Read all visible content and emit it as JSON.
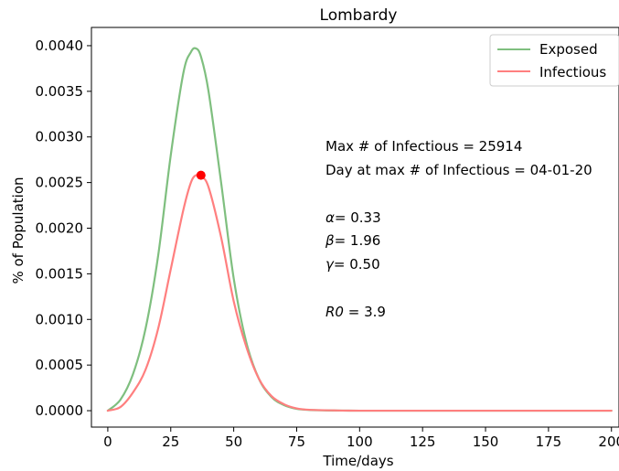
{
  "chart_data": {
    "type": "line",
    "title": "Lombardy",
    "xlabel": "Time/days",
    "ylabel": "% of Population",
    "xlim": [
      -6.5,
      203
    ],
    "ylim": [
      -0.00018,
      0.0042
    ],
    "xticks": [
      0,
      25,
      50,
      75,
      100,
      125,
      150,
      175,
      200
    ],
    "xtick_labels": [
      "0",
      "25",
      "50",
      "75",
      "100",
      "125",
      "150",
      "175",
      "200"
    ],
    "yticks": [
      0.0,
      0.0005,
      0.001,
      0.0015,
      0.002,
      0.0025,
      0.003,
      0.0035,
      0.004
    ],
    "ytick_labels": [
      "0.0000",
      "0.0005",
      "0.0010",
      "0.0015",
      "0.0020",
      "0.0025",
      "0.0030",
      "0.0035",
      "0.0040"
    ],
    "grid": false,
    "legend_position": "top-right",
    "series": [
      {
        "name": "Exposed",
        "color": "#7fbf7f",
        "x": [
          0,
          5,
          10,
          15,
          20,
          25,
          30,
          33,
          35,
          37,
          40,
          45,
          50,
          55,
          60,
          65,
          70,
          75,
          80,
          90,
          100,
          125,
          150,
          175,
          200
        ],
        "y": [
          0.0,
          0.00012,
          0.0004,
          0.0009,
          0.0017,
          0.0028,
          0.0037,
          0.00393,
          0.00397,
          0.00388,
          0.0035,
          0.0025,
          0.00145,
          0.00075,
          0.00035,
          0.00015,
          6e-05,
          2e-05,
          8e-06,
          2e-06,
          0.0,
          0.0,
          0.0,
          0.0,
          0.0
        ]
      },
      {
        "name": "Infectious",
        "color": "#ff7f7f",
        "x": [
          0,
          5,
          10,
          15,
          20,
          25,
          30,
          33,
          35,
          37,
          40,
          45,
          50,
          55,
          60,
          65,
          70,
          75,
          80,
          90,
          100,
          125,
          150,
          175,
          200
        ],
        "y": [
          0.0,
          4e-05,
          0.0002,
          0.00045,
          0.0009,
          0.00155,
          0.0022,
          0.0025,
          0.00258,
          0.00257,
          0.00245,
          0.0019,
          0.0012,
          0.0007,
          0.00035,
          0.00016,
          7e-05,
          2.5e-05,
          1e-05,
          3e-06,
          0.0,
          0.0,
          0.0,
          0.0,
          0.0
        ]
      }
    ],
    "peak_marker": {
      "x": 37,
      "y": 0.00258,
      "color": "#ff0000"
    },
    "annotations": [
      "Max # of Infectious = 25914",
      "Day at max # of Infectious = 04-01-20"
    ],
    "params": [
      {
        "symbol": "α",
        "value": "= 0.33"
      },
      {
        "symbol": "β",
        "value": "= 1.96"
      },
      {
        "symbol": "γ",
        "value": "= 0.50"
      },
      {
        "symbol": "R0",
        "value": " = 3.9"
      }
    ]
  }
}
